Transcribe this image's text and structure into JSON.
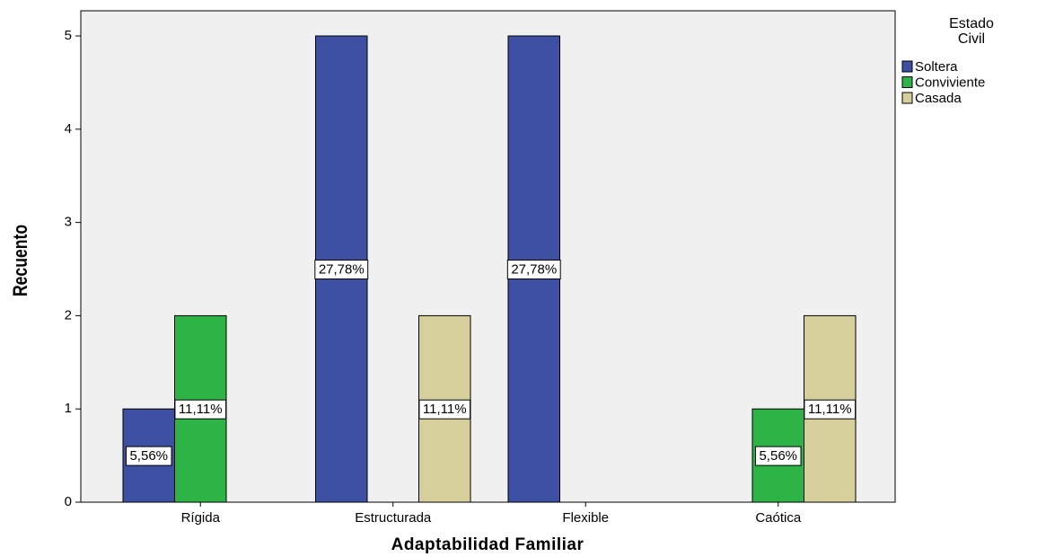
{
  "chart_data": {
    "type": "bar",
    "x_label": "Adaptabilidad Familiar",
    "y_label": "Recuento",
    "legend_title": "Estado Civil",
    "legend": "right",
    "categories": [
      "Rígida",
      "Estructurada",
      "Flexible",
      "Caótica"
    ],
    "series": [
      {
        "name": "Soltera",
        "color": "#3d50a3",
        "values": [
          1,
          5,
          5,
          0
        ],
        "labels": [
          "5,56%",
          "27,78%",
          "27,78%",
          null
        ]
      },
      {
        "name": "Conviviente",
        "color": "#2eb346",
        "values": [
          2,
          0,
          0,
          1
        ],
        "labels": [
          "11,11%",
          null,
          null,
          "5,56%"
        ]
      },
      {
        "name": "Casada",
        "color": "#d6cf9b",
        "values": [
          0,
          2,
          0,
          2
        ],
        "labels": [
          null,
          "11,11%",
          null,
          "11,11%"
        ]
      }
    ],
    "ylim": [
      0,
      5.27
    ],
    "yticks": [
      0,
      1,
      2,
      3,
      4,
      5
    ],
    "grid": false
  }
}
